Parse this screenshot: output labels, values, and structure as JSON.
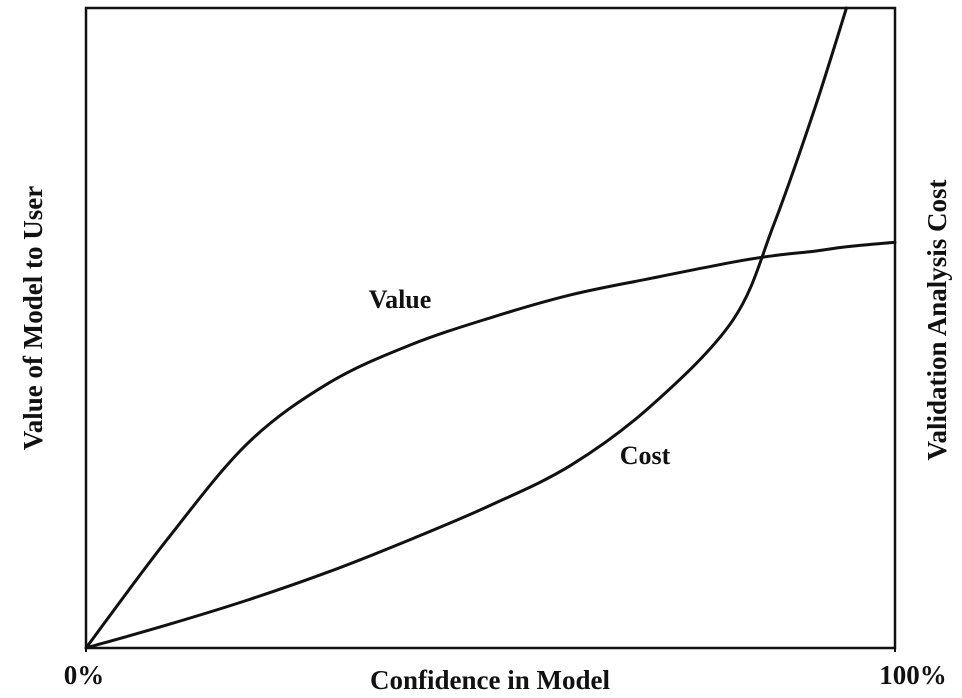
{
  "chart_data": {
    "type": "line",
    "xlabel": "Confidence in Model",
    "ylabel": "Value of Model to User",
    "y2label": "Validation Analysis Cost",
    "x": [
      0,
      10,
      20,
      30,
      40,
      50,
      60,
      70,
      80,
      85,
      90,
      94,
      100
    ],
    "xlim": [
      0,
      100
    ],
    "xticks": [
      {
        "value": 0,
        "label": "0%"
      },
      {
        "value": 100,
        "label": "100%"
      }
    ],
    "ylim": [
      0,
      100
    ],
    "y2lim": [
      0,
      100
    ],
    "grid": false,
    "series": [
      {
        "name": "Value",
        "color": "#111111",
        "values": [
          0,
          16.9,
          32,
          41.4,
          47.3,
          51.6,
          55.2,
          57.8,
          60.3,
          61.3,
          62,
          62.7,
          63.4
        ]
      },
      {
        "name": "Cost",
        "color": "#111111",
        "axis": "y2",
        "values": [
          0,
          3.6,
          7.5,
          11.9,
          16.9,
          22.3,
          28.6,
          38,
          51.3,
          66.1,
          84,
          100,
          null
        ]
      }
    ]
  }
}
